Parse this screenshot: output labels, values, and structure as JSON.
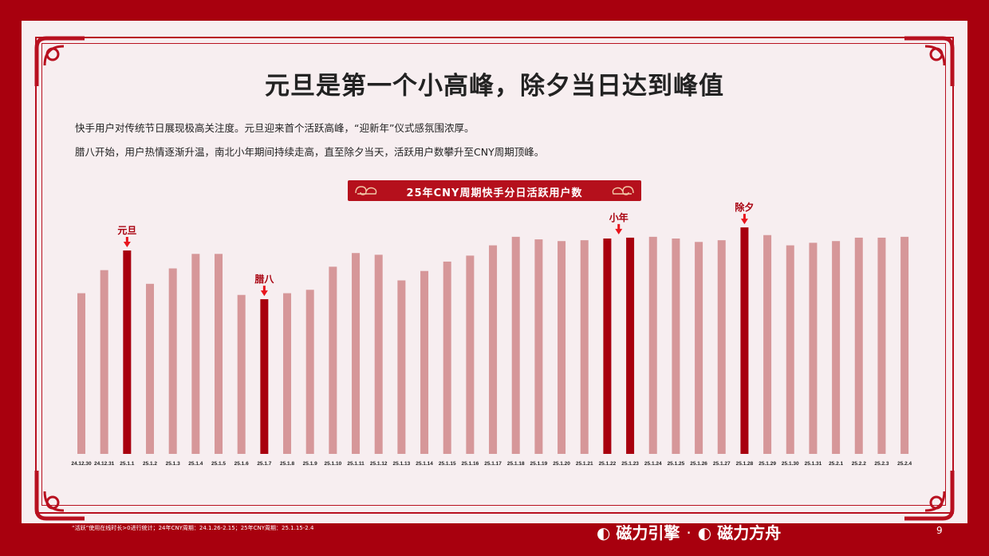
{
  "title": "元旦是第一个小高峰，除夕当日达到峰值",
  "description": [
    "快手用户对传统节日展现极高关注度。元旦迎来首个活跃高峰，“迎新年”仪式感氛围浓厚。",
    "腊八开始，用户热情逐渐升温，南北小年期间持续走高，直至除夕当天，活跃用户数攀升至CNY周期顶峰。"
  ],
  "banner": "25年CNY周期快手分日活跃用户数",
  "footnote": "“活跃”使用在线时长>0进行统计；24年CNY周期：24.1.26-2.15；25年CNY周期：25.1.15-2.4",
  "logo": {
    "brand1": "磁力引擎",
    "separator": "·",
    "brand2": "磁力方舟"
  },
  "page_number": "9",
  "colors": {
    "background": "#a8000e",
    "bar": "#d69799",
    "highlight": "#a8000e",
    "arrow": "#e8141c",
    "annotation": "#a8000e"
  },
  "icons": {
    "logo_mark": "c-mark-icon",
    "arrow": "up-arrow-icon",
    "corner": "scroll-corner-ornament-icon"
  },
  "chart_data": {
    "type": "bar",
    "title": "25年CNY周期快手分日活跃用户数",
    "categories": [
      "24.12.30",
      "24.12.31",
      "25.1.1",
      "25.1.2",
      "25.1.3",
      "25.1.4",
      "25.1.5",
      "25.1.6",
      "25.1.7",
      "25.1.8",
      "25.1.9",
      "25.1.10",
      "25.1.11",
      "25.1.12",
      "25.1.13",
      "25.1.14",
      "25.1.15",
      "25.1.16",
      "25.1.17",
      "25.1.18",
      "25.1.19",
      "25.1.20",
      "25.1.21",
      "25.1.22",
      "25.1.23",
      "25.1.24",
      "25.1.25",
      "25.1.26",
      "25.1.27",
      "25.1.28",
      "25.1.29",
      "25.1.30",
      "25.1.31",
      "25.2.1",
      "25.2.2",
      "25.2.3",
      "25.2.4"
    ],
    "values": [
      188,
      215,
      238,
      199,
      217,
      234,
      234,
      186,
      181,
      188,
      192,
      219,
      235,
      233,
      203,
      214,
      225,
      232,
      244,
      254,
      251,
      249,
      250,
      252,
      253,
      254,
      252,
      248,
      250,
      265,
      256,
      244,
      247,
      249,
      253,
      253,
      254
    ],
    "ylim": [
      0,
      280
    ],
    "highlight_indices": [
      2,
      8,
      23,
      24,
      29
    ],
    "annotations": [
      {
        "index": 2,
        "label": "元旦"
      },
      {
        "index": 8,
        "label": "腊八"
      },
      {
        "index": 23.5,
        "label": "小年"
      },
      {
        "index": 29,
        "label": "除夕"
      }
    ],
    "grid": false,
    "legend": "none"
  }
}
